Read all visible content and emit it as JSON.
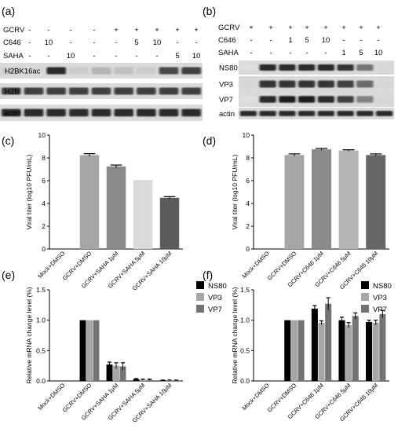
{
  "panel_letters": {
    "a": "(a)",
    "b": "(b)",
    "c": "(c)",
    "d": "(d)",
    "e": "(e)",
    "f": "(f)"
  },
  "blots": [
    {
      "id": "a",
      "row_labels": [
        "GCRV",
        "C646",
        "SAHA"
      ],
      "columns": [
        [
          "-",
          "-",
          "-"
        ],
        [
          "-",
          "10",
          "-"
        ],
        [
          "-",
          "-",
          "10"
        ],
        [
          "-",
          "-",
          "-"
        ],
        [
          "+",
          "-",
          "-"
        ],
        [
          "+",
          "5",
          "-"
        ],
        [
          "+",
          "10",
          "-"
        ],
        [
          "+",
          "-",
          "5"
        ],
        [
          "+",
          "-",
          "10"
        ]
      ],
      "bands": [
        {
          "name": "H2BK16ac",
          "intensity": [
            0.15,
            0.1,
            0.9,
            0.15,
            0.25,
            0.2,
            0.15,
            0.75,
            0.8
          ]
        },
        {
          "name": "H2B",
          "intensity": [
            0.8,
            0.8,
            0.8,
            0.8,
            0.8,
            0.8,
            0.8,
            0.8,
            0.8
          ]
        },
        {
          "name": "actin",
          "intensity": [
            0.9,
            0.9,
            0.9,
            0.9,
            0.9,
            0.9,
            0.9,
            0.9,
            0.9
          ]
        }
      ]
    },
    {
      "id": "b",
      "row_labels": [
        "GCRV",
        "C646",
        "SAHA"
      ],
      "columns": [
        [
          "+",
          "-",
          "-"
        ],
        [
          "+",
          "-",
          "-"
        ],
        [
          "+",
          "1",
          "-"
        ],
        [
          "+",
          "5",
          "-"
        ],
        [
          "+",
          "10",
          "-"
        ],
        [
          "+",
          "-",
          "1"
        ],
        [
          "+",
          "-",
          "5"
        ],
        [
          "+",
          "-",
          "10"
        ]
      ],
      "bands": [
        {
          "name": "NS80",
          "intensity": [
            0.05,
            0.9,
            0.9,
            0.9,
            0.9,
            0.85,
            0.55,
            0.1
          ]
        },
        {
          "name": "VP3",
          "intensity": [
            0.1,
            0.85,
            0.85,
            0.85,
            0.85,
            0.8,
            0.6,
            0.1
          ]
        },
        {
          "name": "VP7",
          "intensity": [
            0.05,
            0.9,
            0.95,
            0.95,
            0.9,
            0.8,
            0.5,
            0.1
          ]
        },
        {
          "name": "actin",
          "intensity": [
            0.9,
            0.9,
            0.9,
            0.9,
            0.9,
            0.9,
            0.9,
            0.9
          ]
        }
      ]
    }
  ],
  "chart_data": [
    {
      "id": "c",
      "type": "bar",
      "ylabel": "Viral titer (log10 PFU/mL)",
      "ylim": [
        0,
        10
      ],
      "yticks": [
        0,
        2,
        4,
        6,
        8,
        10
      ],
      "categories": [
        "Mock+DMSO",
        "GCRV+DMSO",
        "GCRV+SAHA 1μM",
        "GCRV+SAHA 5μM",
        "GCRV+SAHA 10μM"
      ],
      "values": [
        0,
        8.25,
        7.25,
        6.05,
        4.5
      ],
      "errors": [
        0,
        0.12,
        0.12,
        0,
        0.1
      ],
      "colors": [
        "#ffffff",
        "#a6a6a6",
        "#8a8a8a",
        "#d9d9d9",
        "#5c5c5c"
      ]
    },
    {
      "id": "d",
      "type": "bar",
      "ylabel": "Viral titer (log10 PFU/mL)",
      "ylim": [
        0,
        10
      ],
      "yticks": [
        0,
        2,
        4,
        6,
        8,
        10
      ],
      "categories": [
        "Mock+DMSO",
        "GCRV+DMSO",
        "GCRV+C646 1μM",
        "GCRV+C646 5μM",
        "GCRV+C646 10μM"
      ],
      "values": [
        0,
        8.25,
        8.75,
        8.65,
        8.25
      ],
      "errors": [
        0,
        0.1,
        0.08,
        0.06,
        0.1
      ],
      "colors": [
        "#ffffff",
        "#a6a6a6",
        "#8a8a8a",
        "#b3b3b3",
        "#666666"
      ]
    },
    {
      "id": "e",
      "type": "bar",
      "ylabel": "Relative mRNA change level (%)",
      "ylim": [
        0,
        1.5
      ],
      "yticks": [
        "0.0",
        "0.5",
        "1.0",
        "1.5"
      ],
      "categories": [
        "Mock+DMSO",
        "GCRV+DMSO",
        "GCRV+SAHA 1μM",
        "GCRV+SAHA 5μM",
        "GCRV+SAHA 10μM"
      ],
      "series": [
        {
          "name": "NS80",
          "color": "#000000",
          "values": [
            0,
            1.0,
            0.27,
            0.03,
            0.01
          ],
          "errors": [
            0,
            0,
            0.04,
            0.01,
            0.005
          ]
        },
        {
          "name": "VP3",
          "color": "#a6a6a6",
          "values": [
            0,
            1.0,
            0.25,
            0.02,
            0.01
          ],
          "errors": [
            0,
            0,
            0.05,
            0.01,
            0.005
          ]
        },
        {
          "name": "VP7",
          "color": "#737373",
          "values": [
            0,
            1.0,
            0.24,
            0.02,
            0.01
          ],
          "errors": [
            0,
            0,
            0.06,
            0.01,
            0.005
          ]
        }
      ],
      "legend": "top-right"
    },
    {
      "id": "f",
      "type": "bar",
      "ylabel": "Relative mRNA change level (%)",
      "ylim": [
        0,
        1.5
      ],
      "yticks": [
        "0.0",
        "0.5",
        "1.0",
        "1.5"
      ],
      "categories": [
        "Mock+DMSO",
        "GCRV+DMSO",
        "GCRV+C646 1μM",
        "GCRV+C646 5μM",
        "GCRV+C646 10μM"
      ],
      "series": [
        {
          "name": "NS80",
          "color": "#000000",
          "values": [
            0,
            1.0,
            1.19,
            1.0,
            0.97
          ],
          "errors": [
            0,
            0,
            0.05,
            0.05,
            0.03
          ]
        },
        {
          "name": "VP3",
          "color": "#a6a6a6",
          "values": [
            0,
            1.0,
            0.96,
            0.92,
            0.96
          ],
          "errors": [
            0,
            0,
            0.03,
            0.04,
            0.04
          ]
        },
        {
          "name": "VP7",
          "color": "#737373",
          "values": [
            0,
            1.0,
            1.27,
            1.07,
            1.1
          ],
          "errors": [
            0,
            0,
            0.1,
            0.05,
            0.06
          ]
        }
      ],
      "legend": "top-right"
    }
  ]
}
